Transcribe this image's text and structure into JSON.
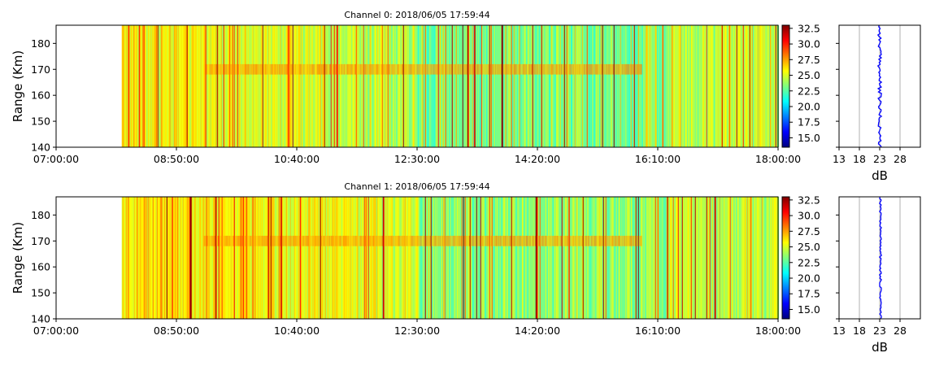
{
  "chart_data": [
    {
      "type": "heatmap",
      "title": "Channel 0: 2018/06/05 17:59:44",
      "ylabel": "Range (Km)",
      "xlabel": "",
      "x_range": [
        "07:00:00",
        "18:00:00"
      ],
      "y_range": [
        140,
        187
      ],
      "x_ticks": [
        "07:00:00",
        "08:50:00",
        "10:40:00",
        "12:30:00",
        "14:20:00",
        "16:10:00",
        "18:00:00"
      ],
      "y_ticks": [
        140,
        150,
        160,
        170,
        180
      ],
      "data_start": "08:00:00",
      "data_end": "18:00:00",
      "echo_band_range": [
        168,
        172
      ],
      "echo_band_time": [
        "09:15:00",
        "15:55:00"
      ],
      "colorbar": {
        "colormap": "jet",
        "range": [
          13.5,
          33.0
        ],
        "ticks": [
          "15.0",
          "17.5",
          "20.0",
          "22.5",
          "25.0",
          "27.5",
          "30.0",
          "32.5"
        ]
      },
      "profile": {
        "xlabel": "dB",
        "x_ticks": [
          13,
          18,
          23,
          28
        ],
        "x_range": [
          13,
          33
        ],
        "mean_value": 23,
        "line_color": "#0000ff"
      }
    },
    {
      "type": "heatmap",
      "title": "Channel 1: 2018/06/05 17:59:44",
      "ylabel": "Range (Km)",
      "xlabel": "",
      "x_range": [
        "07:00:00",
        "18:00:00"
      ],
      "y_range": [
        140,
        187
      ],
      "x_ticks": [
        "07:00:00",
        "08:50:00",
        "10:40:00",
        "12:30:00",
        "14:20:00",
        "16:10:00",
        "18:00:00"
      ],
      "y_ticks": [
        140,
        150,
        160,
        170,
        180
      ],
      "data_start": "08:00:00",
      "data_end": "18:00:00",
      "echo_band_range": [
        168,
        172
      ],
      "echo_band_time": [
        "09:15:00",
        "15:55:00"
      ],
      "colorbar": {
        "colormap": "jet",
        "range": [
          13.5,
          33.0
        ],
        "ticks": [
          "15.0",
          "17.5",
          "20.0",
          "22.5",
          "25.0",
          "27.5",
          "30.0",
          "32.5"
        ]
      },
      "profile": {
        "xlabel": "dB",
        "x_ticks": [
          13,
          18,
          23,
          28
        ],
        "x_range": [
          13,
          33
        ],
        "mean_value": 23.2,
        "line_color": "#0000ff"
      }
    }
  ]
}
